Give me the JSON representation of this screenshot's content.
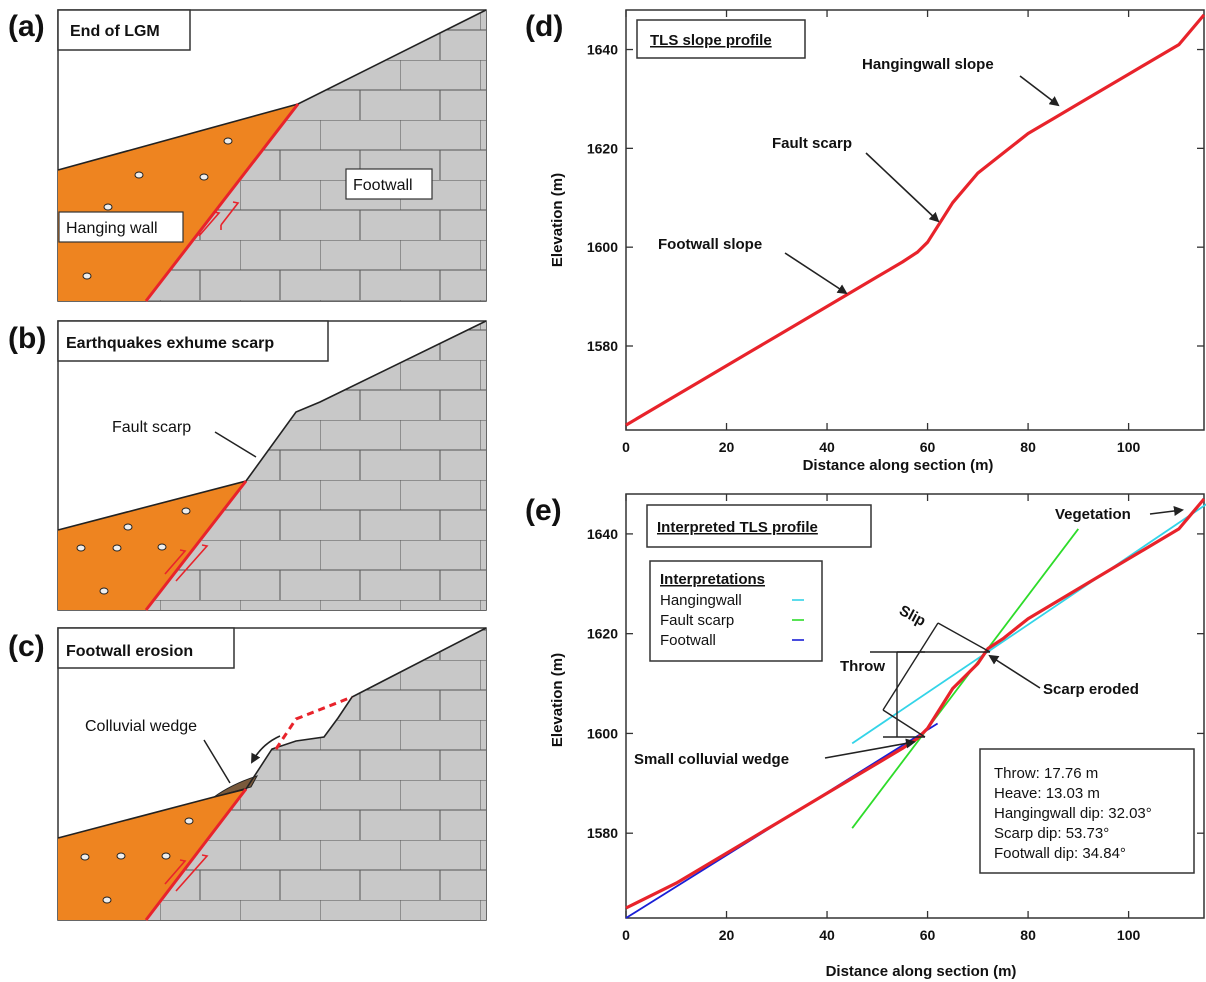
{
  "colors": {
    "hanging_wall_fill": "#ee8420",
    "footwall_fill": "#c8c8c8",
    "fault_line": "#e8232b",
    "profile_line": "#e8232b",
    "hangingwall_fit": "#33d4e8",
    "scarp_fit": "#2edc2a",
    "footwall_fit": "#1a1fd6",
    "colluvium_fill": "#7a5a3c"
  },
  "panel_a": {
    "letter": "(a)",
    "title": "End of LGM",
    "hanging_wall_label": "Hanging wall",
    "footwall_label": "Footwall"
  },
  "panel_b": {
    "letter": "(b)",
    "title": "Earthquakes exhume scarp",
    "fault_scarp_label": "Fault scarp"
  },
  "panel_c": {
    "letter": "(c)",
    "title": "Footwall erosion",
    "colluvial_wedge_label": "Colluvial wedge"
  },
  "panel_d": {
    "letter": "(d)",
    "title": "TLS slope profile",
    "annotations": {
      "hangingwall_slope": "Hangingwall slope",
      "fault_scarp": "Fault scarp",
      "footwall_slope": "Footwall slope"
    },
    "x_ticks": [
      "0",
      "20",
      "40",
      "60",
      "80",
      "100"
    ],
    "y_ticks": [
      "1580",
      "1600",
      "1620",
      "1640"
    ]
  },
  "panel_e": {
    "letter": "(e)",
    "title": "Interpreted TLS profile",
    "annotations": {
      "vegetation": "Vegetation",
      "slip": "Slip",
      "throw": "Throw",
      "scarp_eroded": "Scarp eroded",
      "small_colluvial_wedge": "Small colluvial wedge"
    },
    "legend": {
      "title": "Interpretations",
      "items": [
        {
          "label": "Hangingwall",
          "color": "#33d4e8"
        },
        {
          "label": "Fault scarp",
          "color": "#2edc2a"
        },
        {
          "label": "Footwall",
          "color": "#1a1fd6"
        }
      ]
    },
    "stats": [
      "Throw: 17.76 m",
      "Heave: 13.03 m",
      "Hangingwall dip: 32.03°",
      "Scarp dip: 53.73°",
      "Footwall dip: 34.84°"
    ],
    "x_ticks": [
      "0",
      "20",
      "40",
      "60",
      "80",
      "100"
    ],
    "y_ticks": [
      "1580",
      "1600",
      "1620",
      "1640"
    ]
  },
  "chart_data": [
    {
      "type": "line",
      "title": "TLS slope profile",
      "xlabel": "Distance along section (m)",
      "ylabel": "Elevation (m)",
      "xlim": [
        0,
        115
      ],
      "ylim": [
        1563,
        1648
      ],
      "series": [
        {
          "x": [
            0,
            10,
            20,
            25,
            30,
            40,
            50,
            55,
            58,
            60,
            65,
            70,
            75,
            80,
            85,
            90,
            100,
            110,
            115
          ],
          "y": [
            1564,
            1570,
            1576,
            1579,
            1582,
            1588,
            1594,
            1597,
            1599,
            1601,
            1609,
            1615,
            1619,
            1623,
            1626,
            1629,
            1635,
            1641,
            1647
          ]
        }
      ]
    },
    {
      "type": "line",
      "title": "Interpreted TLS profile",
      "xlabel": "Distance along section (m)",
      "ylabel": "Elevation (m)",
      "xlim": [
        0,
        115
      ],
      "ylim": [
        1563,
        1648
      ],
      "series": [
        {
          "name": "profile",
          "x": [
            0,
            10,
            20,
            25,
            30,
            40,
            50,
            55,
            58,
            60,
            65,
            70,
            72,
            75,
            80,
            85,
            90,
            100,
            110,
            115
          ],
          "y": [
            1565,
            1570,
            1576,
            1579,
            1582,
            1588,
            1594,
            1597,
            1599,
            1601,
            1609,
            1614,
            1617,
            1619,
            1623,
            1626,
            1629,
            1635,
            1641,
            1647
          ]
        },
        {
          "name": "Hangingwall",
          "x": [
            45,
            117
          ],
          "y": [
            1598,
            1647
          ]
        },
        {
          "name": "Fault scarp",
          "x": [
            45,
            90
          ],
          "y": [
            1581,
            1641
          ]
        },
        {
          "name": "Footwall",
          "x": [
            0,
            62
          ],
          "y": [
            1563,
            1602
          ]
        }
      ]
    }
  ]
}
